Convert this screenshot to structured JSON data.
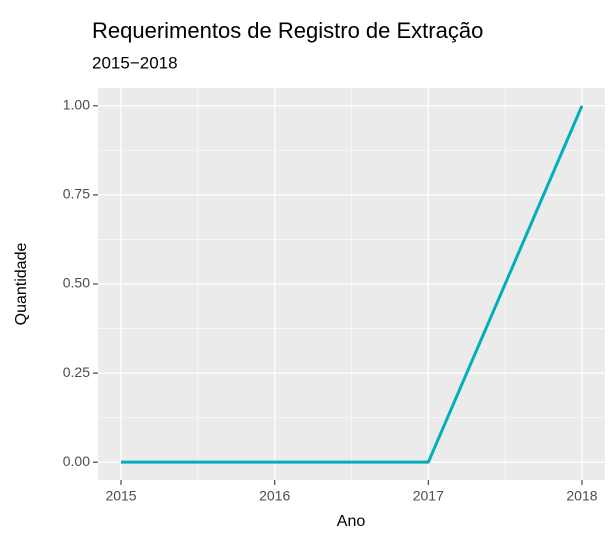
{
  "chart_data": {
    "type": "line",
    "title": "Requerimentos de Registro de Extração",
    "subtitle": "2015−2018",
    "x_label": "Ano",
    "y_label": "Quantidade",
    "x": [
      2015,
      2016,
      2017,
      2018
    ],
    "series": [
      {
        "name": "Quantidade",
        "color": "#00AFBB",
        "values": [
          0,
          0,
          0,
          1
        ]
      }
    ],
    "xlim": [
      2014.85,
      2018.15
    ],
    "xticks": [
      2015,
      2016,
      2017,
      2018
    ],
    "ylim": [
      -0.05,
      1.05
    ],
    "yticks": [
      {
        "value": 0,
        "label": "0.00"
      },
      {
        "value": 0.25,
        "label": "0.25"
      },
      {
        "value": 0.5,
        "label": "0.50"
      },
      {
        "value": 0.75,
        "label": "0.75"
      },
      {
        "value": 1,
        "label": "1.00"
      }
    ],
    "grid": true
  }
}
